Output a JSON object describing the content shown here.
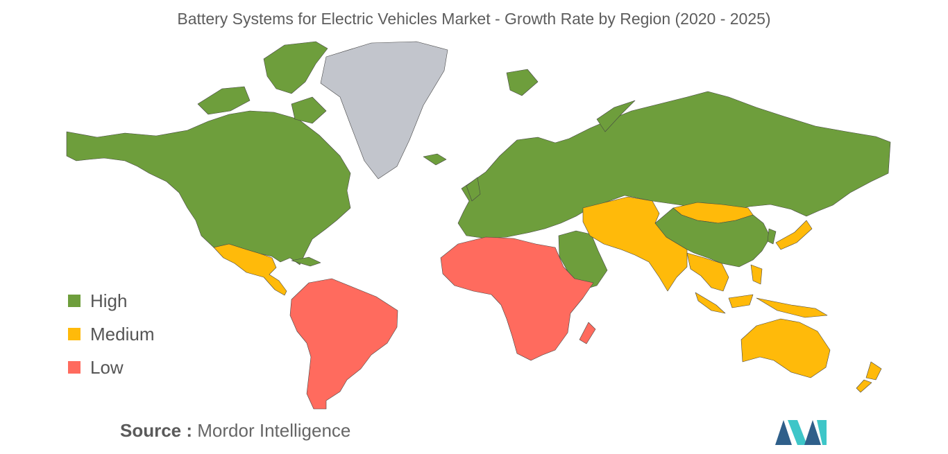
{
  "title": "Battery Systems for Electric Vehicles Market - Growth Rate by Region (2020 - 2025)",
  "colors": {
    "High": "#6e9e3c",
    "Medium": "#ffba0a",
    "Low": "#ff6b5e",
    "no_data": "#c2c5cc",
    "border": "#444444"
  },
  "legend": [
    {
      "label": "High",
      "color": "#6e9e3c"
    },
    {
      "label": "Medium",
      "color": "#ffba0a"
    },
    {
      "label": "Low",
      "color": "#ff6b5e"
    }
  ],
  "regions": [
    {
      "id": "north-america",
      "category": "High"
    },
    {
      "id": "mexico-central-america",
      "category": "Medium"
    },
    {
      "id": "south-america",
      "category": "Low"
    },
    {
      "id": "greenland",
      "category": "no_data"
    },
    {
      "id": "europe-russia",
      "category": "High"
    },
    {
      "id": "middle-east",
      "category": "High"
    },
    {
      "id": "africa",
      "category": "Low"
    },
    {
      "id": "central-south-asia",
      "category": "Medium"
    },
    {
      "id": "china",
      "category": "High"
    },
    {
      "id": "mongolia",
      "category": "Medium"
    },
    {
      "id": "southeast-asia",
      "category": "Medium"
    },
    {
      "id": "japan",
      "category": "Medium"
    },
    {
      "id": "oceania",
      "category": "Medium"
    }
  ],
  "source": {
    "label": "Source :",
    "value": "Mordor Intelligence"
  }
}
